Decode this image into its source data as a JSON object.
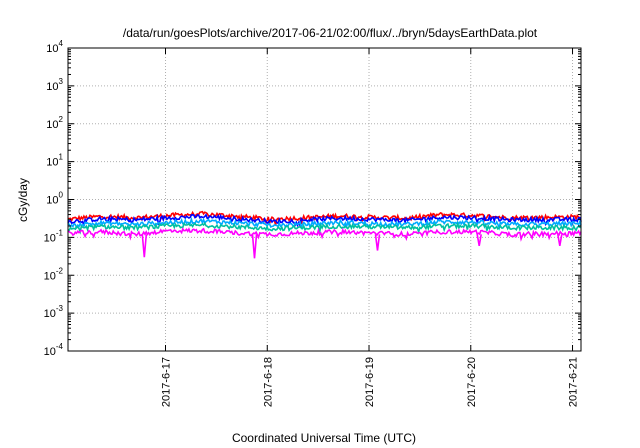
{
  "chart_data": {
    "type": "line",
    "title": "/data/run/goesPlots/archive/2017-06-21/02:00/flux/../bryn/5daysEarthData.plot",
    "xlabel": "Coordinated Universal Time (UTC)",
    "ylabel": "cGy/day",
    "yscale": "log",
    "ylim": [
      0.0001,
      10000
    ],
    "xlim": [
      "2017-06-16 01:00",
      "2017-06-21 02:00"
    ],
    "grid": true,
    "y_ticks": [
      {
        "base": "10",
        "exp": "-4"
      },
      {
        "base": "10",
        "exp": "-3"
      },
      {
        "base": "10",
        "exp": "-2"
      },
      {
        "base": "10",
        "exp": "-1"
      },
      {
        "base": "10",
        "exp": "0"
      },
      {
        "base": "10",
        "exp": "1"
      },
      {
        "base": "10",
        "exp": "2"
      },
      {
        "base": "10",
        "exp": "3"
      },
      {
        "base": "10",
        "exp": "4"
      }
    ],
    "x_ticks": [
      "2017-6-17",
      "2017-6-18",
      "2017-6-19",
      "2017-6-20",
      "2017-6-21"
    ],
    "series": [
      {
        "color": "#ff0000",
        "values": [
          0.3,
          0.36,
          0.33,
          0.38,
          0.42,
          0.36,
          0.3,
          0.33,
          0.37,
          0.34,
          0.32,
          0.4,
          0.38,
          0.33,
          0.35
        ],
        "x": [
          "2017-06-16 01:00",
          "2017-06-16 09:00",
          "2017-06-16 17:00",
          "2017-06-17 01:00",
          "2017-06-17 09:00",
          "2017-06-17 17:00",
          "2017-06-18 01:00",
          "2017-06-18 09:00",
          "2017-06-18 17:00",
          "2017-06-19 01:00",
          "2017-06-19 09:00",
          "2017-06-19 17:00",
          "2017-06-20 01:00",
          "2017-06-20 09:00",
          "2017-06-21 02:00"
        ]
      },
      {
        "color": "#0000ff",
        "values": [
          0.26,
          0.31,
          0.29,
          0.33,
          0.36,
          0.31,
          0.26,
          0.29,
          0.32,
          0.3,
          0.28,
          0.34,
          0.33,
          0.29,
          0.3
        ],
        "x": [
          "2017-06-16 01:00",
          "2017-06-16 09:00",
          "2017-06-16 17:00",
          "2017-06-17 01:00",
          "2017-06-17 09:00",
          "2017-06-17 17:00",
          "2017-06-18 01:00",
          "2017-06-18 09:00",
          "2017-06-18 17:00",
          "2017-06-19 01:00",
          "2017-06-19 09:00",
          "2017-06-19 17:00",
          "2017-06-20 01:00",
          "2017-06-20 09:00",
          "2017-06-21 02:00"
        ]
      },
      {
        "color": "#00aaff",
        "values": [
          0.21,
          0.24,
          0.22,
          0.25,
          0.27,
          0.24,
          0.21,
          0.22,
          0.25,
          0.23,
          0.22,
          0.26,
          0.25,
          0.22,
          0.23
        ],
        "x": [
          "2017-06-16 01:00",
          "2017-06-16 09:00",
          "2017-06-16 17:00",
          "2017-06-17 01:00",
          "2017-06-17 09:00",
          "2017-06-17 17:00",
          "2017-06-18 01:00",
          "2017-06-18 09:00",
          "2017-06-18 17:00",
          "2017-06-19 01:00",
          "2017-06-19 09:00",
          "2017-06-19 17:00",
          "2017-06-20 01:00",
          "2017-06-20 09:00",
          "2017-06-21 02:00"
        ]
      },
      {
        "color": "#00c0a0",
        "values": [
          0.17,
          0.19,
          0.18,
          0.2,
          0.21,
          0.19,
          0.17,
          0.18,
          0.2,
          0.19,
          0.18,
          0.2,
          0.2,
          0.18,
          0.18
        ],
        "x": [
          "2017-06-16 01:00",
          "2017-06-16 09:00",
          "2017-06-16 17:00",
          "2017-06-17 01:00",
          "2017-06-17 09:00",
          "2017-06-17 17:00",
          "2017-06-18 01:00",
          "2017-06-18 09:00",
          "2017-06-18 17:00",
          "2017-06-19 01:00",
          "2017-06-19 09:00",
          "2017-06-19 17:00",
          "2017-06-20 01:00",
          "2017-06-20 09:00",
          "2017-06-21 02:00"
        ]
      },
      {
        "color": "#ff00ff",
        "values": [
          0.13,
          0.14,
          0.12,
          0.15,
          0.15,
          0.13,
          0.12,
          0.13,
          0.14,
          0.13,
          0.12,
          0.14,
          0.14,
          0.12,
          0.13
        ],
        "x": [
          "2017-06-16 01:00",
          "2017-06-16 09:00",
          "2017-06-16 17:00",
          "2017-06-17 01:00",
          "2017-06-17 09:00",
          "2017-06-17 17:00",
          "2017-06-18 01:00",
          "2017-06-18 09:00",
          "2017-06-18 17:00",
          "2017-06-19 01:00",
          "2017-06-19 09:00",
          "2017-06-19 17:00",
          "2017-06-20 01:00",
          "2017-06-20 09:00",
          "2017-06-21 02:00"
        ]
      }
    ],
    "dips": [
      {
        "color": "#ff00ff",
        "x": "2017-06-16 19:00",
        "y": 0.03
      },
      {
        "color": "#ff00ff",
        "x": "2017-06-17 21:00",
        "y": 0.028
      },
      {
        "color": "#ff00ff",
        "x": "2017-06-19 02:00",
        "y": 0.045
      },
      {
        "color": "#ff00ff",
        "x": "2017-06-20 02:00",
        "y": 0.06
      },
      {
        "color": "#ff00ff",
        "x": "2017-06-20 21:00",
        "y": 0.06
      }
    ]
  }
}
